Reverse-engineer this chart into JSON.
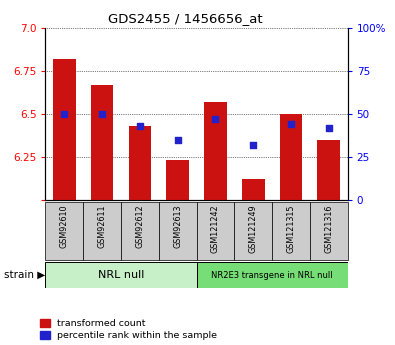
{
  "title": "GDS2455 / 1456656_at",
  "samples": [
    "GSM92610",
    "GSM92611",
    "GSM92612",
    "GSM92613",
    "GSM121242",
    "GSM121249",
    "GSM121315",
    "GSM121316"
  ],
  "red_values": [
    6.82,
    6.67,
    6.43,
    6.23,
    6.57,
    6.12,
    6.5,
    6.35
  ],
  "blue_values": [
    50,
    50,
    43,
    35,
    47,
    32,
    44,
    42
  ],
  "ylim_left": [
    6.0,
    7.0
  ],
  "ylim_right": [
    0,
    100
  ],
  "yticks_left": [
    6.0,
    6.25,
    6.5,
    6.75,
    7.0
  ],
  "yticks_right": [
    0,
    25,
    50,
    75,
    100
  ],
  "group1_label": "NRL null",
  "group2_label": "NR2E3 transgene in NRL null",
  "group1_indices": [
    0,
    1,
    2,
    3
  ],
  "group2_indices": [
    4,
    5,
    6,
    7
  ],
  "strain_label": "strain",
  "legend_red": "transformed count",
  "legend_blue": "percentile rank within the sample",
  "bar_color": "#cc1111",
  "dot_color": "#2222cc",
  "bar_width": 0.6,
  "group1_bg": "#c8f0c8",
  "group2_bg": "#77dd77",
  "tick_bg": "#cccccc",
  "fig_width": 3.95,
  "fig_height": 3.45,
  "dpi": 100
}
